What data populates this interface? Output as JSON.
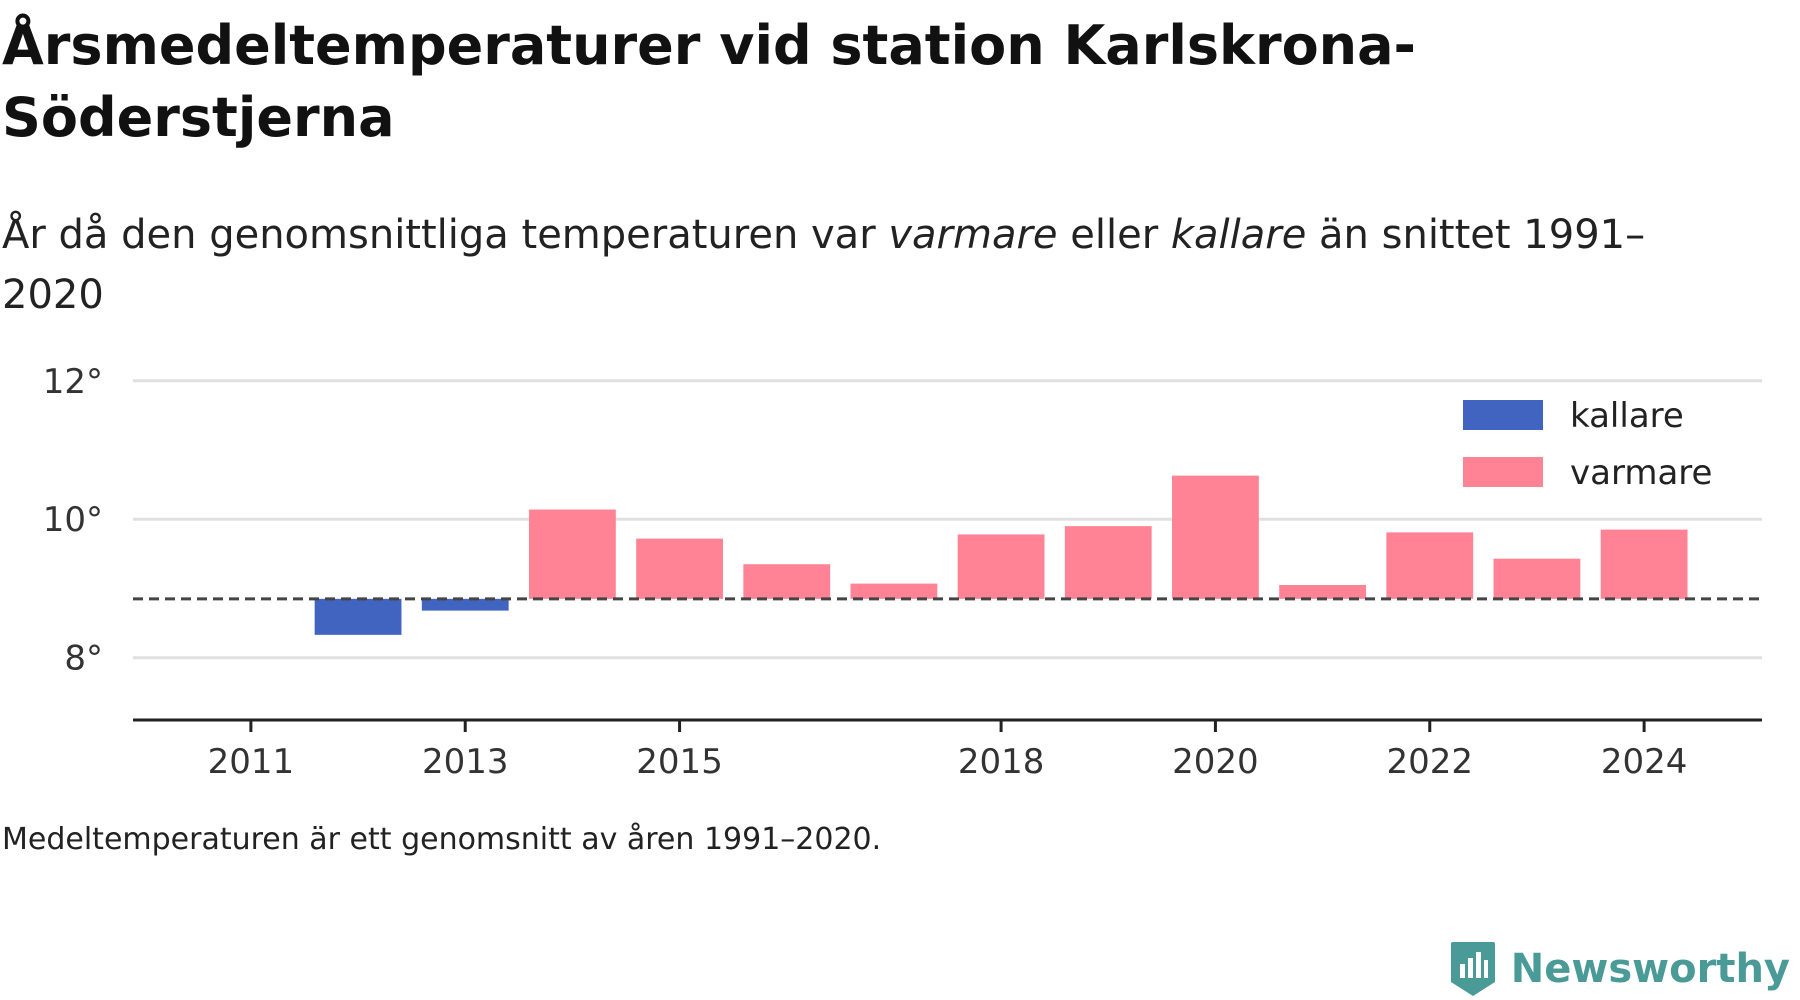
{
  "title": "Årsmedeltemperaturer vid station Karlskrona-Söderstjerna",
  "subtitle": {
    "part1": "År då den genomsnittliga temperaturen var ",
    "warm_word": "varmare",
    "part2": " eller ",
    "cold_word": "kallare",
    "part3": " än snittet 1991–2020"
  },
  "footnote": "Medeltemperaturen är ett genomsnitt av åren 1991–2020.",
  "brand": {
    "name": "Newsworthy",
    "color": "#4a9b97",
    "icon": "newsworthy-logo-icon"
  },
  "chart_data": {
    "type": "bar",
    "baseline": 8.85,
    "ylim": [
      7.1,
      12.3
    ],
    "yticks": [
      8,
      10,
      12
    ],
    "ytick_labels": [
      "8°",
      "10°",
      "12°"
    ],
    "xlim": [
      2009.9,
      2025.1
    ],
    "xticks": [
      2011,
      2013,
      2015,
      2018,
      2020,
      2022,
      2024
    ],
    "xtick_labels": [
      "2011",
      "2013",
      "2015",
      "2018",
      "2020",
      "2022",
      "2024"
    ],
    "categories": [
      2012,
      2013,
      2014,
      2015,
      2016,
      2017,
      2018,
      2019,
      2020,
      2021,
      2022,
      2023,
      2024
    ],
    "values": [
      8.33,
      8.68,
      10.14,
      9.72,
      9.35,
      9.07,
      9.78,
      9.9,
      10.63,
      9.05,
      9.81,
      9.43,
      9.85
    ],
    "grid": true,
    "legend_position": "top-right",
    "legend": [
      {
        "key": "cold",
        "label": "kallare",
        "color": "#4064c0"
      },
      {
        "key": "warm",
        "label": "varmare",
        "color": "#ff8394"
      }
    ]
  }
}
